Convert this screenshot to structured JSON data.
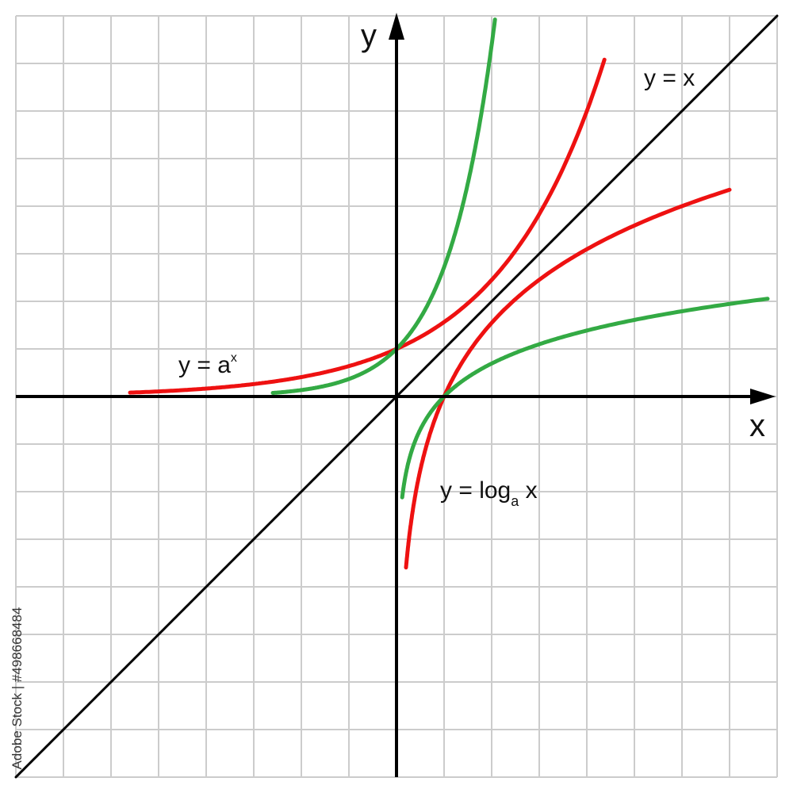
{
  "chart_data": {
    "type": "line",
    "xlim": [
      -8,
      8
    ],
    "ylim": [
      -8,
      8
    ],
    "grid": true,
    "axis_labels": {
      "x": "x",
      "y": "y"
    },
    "colors": {
      "grid": "#cccccc",
      "axes": "#000000",
      "red": "#ee1111",
      "green": "#33aa44"
    },
    "series": [
      {
        "name": "y = x",
        "kind": "identity",
        "color": "#000000",
        "x_range": [
          -8,
          8
        ]
      },
      {
        "kind": "exponential",
        "base": 1.565,
        "color": "#ee1111",
        "x_range": [
          -5.6,
          4.37
        ]
      },
      {
        "kind": "exponential",
        "base": 2.718,
        "color": "#33aa44",
        "x_range": [
          -2.6,
          2.07
        ]
      },
      {
        "kind": "logarithm",
        "base": 1.565,
        "color": "#ee1111",
        "x_range": [
          0.2,
          7.0
        ]
      },
      {
        "kind": "logarithm",
        "base": 2.718,
        "color": "#33aa44",
        "x_range": [
          0.12,
          7.8
        ]
      }
    ],
    "annotations": {
      "identity": "y = x",
      "exp_prefix": "y = a",
      "exp_sup": "x",
      "log_prefix": "y = log",
      "log_sub": "a",
      "log_suffix": " x"
    }
  },
  "credit": "Adobe Stock | #498668484"
}
